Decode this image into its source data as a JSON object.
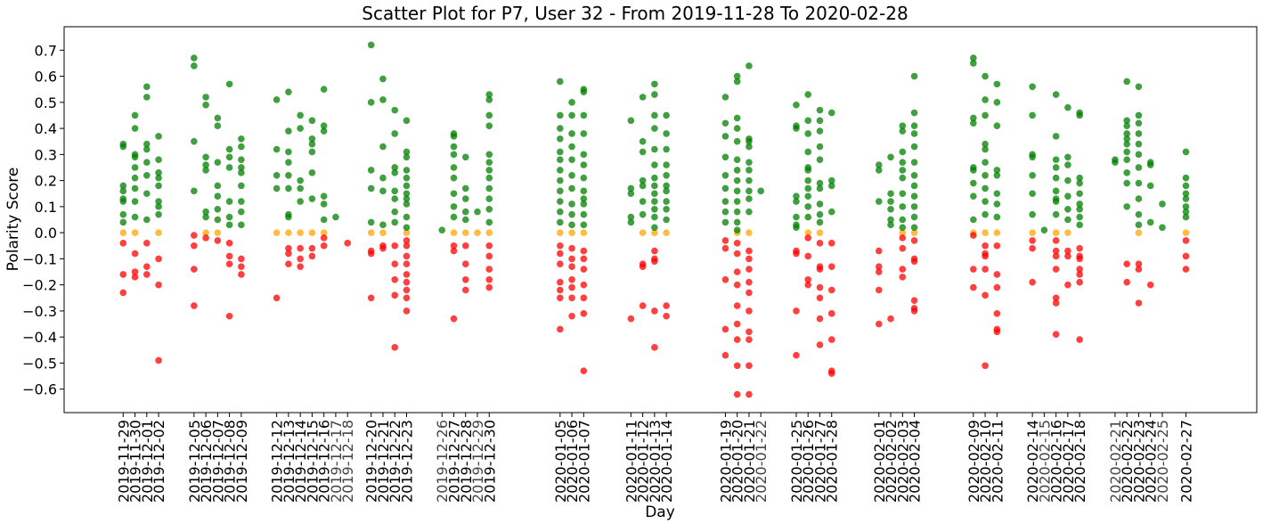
{
  "chart_data": {
    "type": "scatter",
    "title": "Scatter Plot for P7, User 32 - From 2019-11-28 To 2020-02-28",
    "xlabel": "Day",
    "ylabel": "Polarity Score",
    "ylim": [
      -0.69,
      0.79
    ],
    "yticks": [
      -0.6,
      -0.5,
      -0.4,
      -0.3,
      -0.2,
      -0.1,
      0.0,
      0.1,
      0.2,
      0.3,
      0.4,
      0.5,
      0.6,
      0.7
    ],
    "ytick_labels": [
      "−0.6",
      "−0.5",
      "−0.4",
      "−0.3",
      "−0.2",
      "−0.1",
      "0.0",
      "0.1",
      "0.2",
      "0.3",
      "0.4",
      "0.5",
      "0.6",
      "0.7"
    ],
    "xlim": [
      "2019-11-24",
      "2020-03-04"
    ],
    "grid": false,
    "colors": {
      "positive": "#008000",
      "neutral": "#ffa500",
      "negative": "#ff0000"
    },
    "days": [
      {
        "date": "2019-11-29",
        "pos": [
          0.34,
          0.33,
          0.18,
          0.16,
          0.13,
          0.12,
          0.07,
          0.04
        ],
        "neu": [
          0.0
        ],
        "neg": [
          -0.04,
          -0.16,
          -0.23
        ]
      },
      {
        "date": "2019-11-30",
        "pos": [
          0.45,
          0.4,
          0.3,
          0.29,
          0.25,
          0.21,
          0.17,
          0.12,
          0.06
        ],
        "neu": [
          0.0
        ],
        "neg": [
          -0.08,
          -0.15,
          -0.17
        ]
      },
      {
        "date": "2019-12-01",
        "pos": [
          0.56,
          0.52,
          0.34,
          0.32,
          0.27,
          0.22,
          0.15,
          0.05
        ],
        "neu": [],
        "neg": [
          -0.04,
          -0.13,
          -0.16
        ]
      },
      {
        "date": "2019-12-02",
        "pos": [
          0.37,
          0.28,
          0.23,
          0.21,
          0.18,
          0.12,
          0.1,
          0.07
        ],
        "neu": [
          0.0
        ],
        "neg": [
          -0.1,
          -0.2,
          -0.49
        ]
      },
      {
        "date": "2019-12-05",
        "pos": [
          0.67,
          0.64,
          0.35,
          0.16
        ],
        "neu": [],
        "neg": [
          -0.01,
          -0.05,
          -0.14,
          -0.28
        ]
      },
      {
        "date": "2019-12-06",
        "pos": [
          0.52,
          0.49,
          0.29,
          0.26,
          0.24,
          0.08,
          0.06
        ],
        "neu": [
          0.0
        ],
        "neg": [
          -0.02
        ]
      },
      {
        "date": "2019-12-07",
        "pos": [
          0.44,
          0.41,
          0.27,
          0.18,
          0.14,
          0.09,
          0.05
        ],
        "neu": [
          0.0
        ],
        "neg": [
          -0.03
        ]
      },
      {
        "date": "2019-12-08",
        "pos": [
          0.57,
          0.32,
          0.29,
          0.25,
          0.12,
          0.06,
          0.03
        ],
        "neu": [],
        "neg": [
          -0.04,
          -0.09,
          -0.12,
          -0.32
        ]
      },
      {
        "date": "2019-12-09",
        "pos": [
          0.36,
          0.33,
          0.28,
          0.25,
          0.23,
          0.18,
          0.12,
          0.08,
          0.03
        ],
        "neu": [],
        "neg": [
          -0.1,
          -0.13,
          -0.16
        ]
      },
      {
        "date": "2019-12-12",
        "pos": [
          0.51,
          0.32,
          0.22,
          0.17
        ],
        "neu": [
          0.0
        ],
        "neg": [
          -0.25
        ]
      },
      {
        "date": "2019-12-13",
        "pos": [
          0.54,
          0.39,
          0.31,
          0.27,
          0.22,
          0.17,
          0.07,
          0.06
        ],
        "neu": [
          0.0
        ],
        "neg": [
          -0.06,
          -0.08,
          -0.12
        ]
      },
      {
        "date": "2019-12-14",
        "pos": [
          0.45,
          0.4,
          0.2,
          0.17,
          0.12
        ],
        "neu": [
          0.0
        ],
        "neg": [
          -0.06,
          -0.1,
          -0.13
        ]
      },
      {
        "date": "2019-12-15",
        "pos": [
          0.43,
          0.36,
          0.34,
          0.31,
          0.23,
          0.13
        ],
        "neu": [
          0.0
        ],
        "neg": [
          -0.06,
          -0.09
        ]
      },
      {
        "date": "2019-12-16",
        "pos": [
          0.55,
          0.41,
          0.39,
          0.14,
          0.11,
          0.05
        ],
        "neu": [
          0.0
        ],
        "neg": [
          -0.02,
          -0.05
        ]
      },
      {
        "date": "2019-12-17",
        "pos": [
          0.06
        ],
        "neu": [],
        "neg": []
      },
      {
        "date": "2019-12-18",
        "pos": [],
        "neu": [],
        "neg": [
          -0.04
        ]
      },
      {
        "date": "2019-12-20",
        "pos": [
          0.72,
          0.5,
          0.24,
          0.17,
          0.04
        ],
        "neu": [
          0.0
        ],
        "neg": [
          -0.07,
          -0.08,
          -0.25
        ]
      },
      {
        "date": "2019-12-21",
        "pos": [
          0.59,
          0.51,
          0.33,
          0.21,
          0.16,
          0.03
        ],
        "neu": [
          0.0
        ],
        "neg": [
          -0.05,
          -0.06
        ]
      },
      {
        "date": "2019-12-22",
        "pos": [
          0.47,
          0.38,
          0.25,
          0.23,
          0.16,
          0.13,
          0.08,
          0.04
        ],
        "neu": [],
        "neg": [
          -0.05,
          -0.12,
          -0.18,
          -0.24,
          -0.44
        ]
      },
      {
        "date": "2019-12-23",
        "pos": [
          0.43,
          0.31,
          0.29,
          0.24,
          0.21,
          0.18,
          0.15,
          0.13,
          0.11,
          0.06,
          0.02
        ],
        "neu": [
          0.0
        ],
        "neg": [
          -0.03,
          -0.05,
          -0.09,
          -0.12,
          -0.16,
          -0.19,
          -0.22,
          -0.25,
          -0.3
        ]
      },
      {
        "date": "2019-12-26",
        "pos": [
          0.01
        ],
        "neu": [],
        "neg": []
      },
      {
        "date": "2019-12-27",
        "pos": [
          0.38,
          0.37,
          0.33,
          0.3,
          0.25,
          0.21,
          0.15,
          0.1,
          0.06
        ],
        "neu": [
          0.0
        ],
        "neg": [
          -0.05,
          -0.07,
          -0.33
        ]
      },
      {
        "date": "2019-12-28",
        "pos": [
          0.29,
          0.17,
          0.13,
          0.08,
          0.05
        ],
        "neu": [
          0.0
        ],
        "neg": [
          -0.05,
          -0.12,
          -0.18,
          -0.22
        ]
      },
      {
        "date": "2019-12-29",
        "pos": [
          0.08
        ],
        "neu": [
          0.0
        ],
        "neg": []
      },
      {
        "date": "2019-12-30",
        "pos": [
          0.53,
          0.51,
          0.45,
          0.41,
          0.3,
          0.27,
          0.24,
          0.21,
          0.17,
          0.13,
          0.09,
          0.04
        ],
        "neu": [
          0.0
        ],
        "neg": [
          -0.05,
          -0.09,
          -0.14,
          -0.18,
          -0.21
        ]
      },
      {
        "date": "2020-01-05",
        "pos": [
          0.58,
          0.45,
          0.4,
          0.36,
          0.31,
          0.28,
          0.24,
          0.2,
          0.16,
          0.12,
          0.08,
          0.04
        ],
        "neu": [
          0.0
        ],
        "neg": [
          -0.05,
          -0.08,
          -0.12,
          -0.19,
          -0.22,
          -0.25,
          -0.37
        ]
      },
      {
        "date": "2020-01-06",
        "pos": [
          0.5,
          0.45,
          0.38,
          0.33,
          0.28,
          0.22,
          0.17,
          0.11,
          0.07,
          0.03
        ],
        "neu": [
          0.0
        ],
        "neg": [
          -0.06,
          -0.1,
          -0.13,
          -0.18,
          -0.21,
          -0.25,
          -0.32
        ]
      },
      {
        "date": "2020-01-07",
        "pos": [
          0.55,
          0.54,
          0.45,
          0.38,
          0.3,
          0.26,
          0.21,
          0.16,
          0.13,
          0.11,
          0.07,
          0.03
        ],
        "neu": [
          0.0
        ],
        "neg": [
          -0.07,
          -0.1,
          -0.14,
          -0.2,
          -0.25,
          -0.31,
          -0.53
        ]
      },
      {
        "date": "2020-01-11",
        "pos": [
          0.43,
          0.17,
          0.15,
          0.06,
          0.04
        ],
        "neu": [],
        "neg": [
          -0.33
        ]
      },
      {
        "date": "2020-01-12",
        "pos": [
          0.52,
          0.35,
          0.31,
          0.2,
          0.18,
          0.12,
          0.07
        ],
        "neu": [
          0.0
        ],
        "neg": [
          -0.12,
          -0.13,
          -0.28
        ]
      },
      {
        "date": "2020-01-13",
        "pos": [
          0.57,
          0.53,
          0.45,
          0.4,
          0.32,
          0.26,
          0.21,
          0.18,
          0.15,
          0.12,
          0.09,
          0.06,
          0.02
        ],
        "neu": [
          0.0
        ],
        "neg": [
          -0.07,
          -0.1,
          -0.11,
          -0.3,
          -0.44
        ]
      },
      {
        "date": "2020-01-14",
        "pos": [
          0.45,
          0.38,
          0.32,
          0.26,
          0.22,
          0.18,
          0.16,
          0.12,
          0.09,
          0.05
        ],
        "neu": [
          0.0
        ],
        "neg": [
          -0.28,
          -0.32
        ]
      },
      {
        "date": "2020-01-19",
        "pos": [
          0.52,
          0.42,
          0.37,
          0.29,
          0.22,
          0.17,
          0.12,
          0.08,
          0.04
        ],
        "neu": [],
        "neg": [
          -0.03,
          -0.06,
          -0.18,
          -0.37,
          -0.47
        ]
      },
      {
        "date": "2020-01-20",
        "pos": [
          0.6,
          0.58,
          0.44,
          0.4,
          0.35,
          0.28,
          0.24,
          0.2,
          0.16,
          0.12,
          0.08,
          0.04,
          0.01
        ],
        "neu": [
          0.0
        ],
        "neg": [
          -0.04,
          -0.08,
          -0.15,
          -0.2,
          -0.28,
          -0.35,
          -0.41,
          -0.51,
          -0.62
        ]
      },
      {
        "date": "2020-01-21",
        "pos": [
          0.64,
          0.36,
          0.35,
          0.33,
          0.27,
          0.24,
          0.2,
          0.16,
          0.13,
          0.08
        ],
        "neu": [
          0.0
        ],
        "neg": [
          -0.07,
          -0.1,
          -0.14,
          -0.19,
          -0.23,
          -0.3,
          -0.38,
          -0.41,
          -0.51,
          -0.62
        ]
      },
      {
        "date": "2020-01-22",
        "pos": [
          0.16
        ],
        "neu": [],
        "neg": []
      },
      {
        "date": "2020-01-25",
        "pos": [
          0.49,
          0.41,
          0.4,
          0.14,
          0.12,
          0.06,
          0.03,
          0.02
        ],
        "neu": [],
        "neg": [
          -0.07,
          -0.08,
          -0.3,
          -0.47
        ]
      },
      {
        "date": "2020-01-26",
        "pos": [
          0.53,
          0.43,
          0.38,
          0.31,
          0.25,
          0.24,
          0.2,
          0.17,
          0.14,
          0.1,
          0.06
        ],
        "neu": [
          0.0
        ],
        "neg": [
          -0.02,
          -0.09,
          -0.18,
          -0.2
        ]
      },
      {
        "date": "2020-01-27",
        "pos": [
          0.47,
          0.43,
          0.39,
          0.33,
          0.28,
          0.19,
          0.17,
          0.11,
          0.07,
          0.04
        ],
        "neu": [
          0.0
        ],
        "neg": [
          -0.04,
          -0.13,
          -0.14,
          -0.21,
          -0.25,
          -0.33,
          -0.43
        ]
      },
      {
        "date": "2020-01-28",
        "pos": [
          0.46,
          0.2,
          0.18,
          0.08
        ],
        "neu": [],
        "neg": [
          -0.04,
          -0.13,
          -0.22,
          -0.31,
          -0.41,
          -0.53,
          -0.54
        ]
      },
      {
        "date": "2020-02-01",
        "pos": [
          0.26,
          0.24,
          0.12
        ],
        "neu": [],
        "neg": [
          -0.07,
          -0.13,
          -0.15,
          -0.22,
          -0.35
        ]
      },
      {
        "date": "2020-02-02",
        "pos": [
          0.29,
          0.15,
          0.12,
          0.09,
          0.05,
          0.03
        ],
        "neu": [],
        "neg": [
          -0.33
        ]
      },
      {
        "date": "2020-02-03",
        "pos": [
          0.41,
          0.39,
          0.31,
          0.27,
          0.24,
          0.21,
          0.15,
          0.1,
          0.05,
          0.02
        ],
        "neu": [
          0.0
        ],
        "neg": [
          -0.02,
          -0.06,
          -0.14,
          -0.17
        ]
      },
      {
        "date": "2020-02-04",
        "pos": [
          0.6,
          0.46,
          0.41,
          0.38,
          0.33,
          0.27,
          0.22,
          0.18,
          0.14,
          0.1,
          0.06,
          0.02
        ],
        "neu": [
          0.0
        ],
        "neg": [
          -0.03,
          -0.1,
          -0.11,
          -0.26,
          -0.29,
          -0.3
        ]
      },
      {
        "date": "2020-02-09",
        "pos": [
          0.67,
          0.65,
          0.44,
          0.42,
          0.25,
          0.24,
          0.19,
          0.14,
          0.05
        ],
        "neu": [
          0.0
        ],
        "neg": [
          -0.01,
          -0.14,
          -0.21
        ]
      },
      {
        "date": "2020-02-10",
        "pos": [
          0.6,
          0.51,
          0.45,
          0.34,
          0.32,
          0.27,
          0.22,
          0.17,
          0.12,
          0.07
        ],
        "neu": [
          0.0
        ],
        "neg": [
          -0.05,
          -0.08,
          -0.09,
          -0.14,
          -0.24,
          -0.51
        ]
      },
      {
        "date": "2020-02-11",
        "pos": [
          0.57,
          0.5,
          0.41,
          0.24,
          0.22,
          0.15,
          0.11,
          0.06
        ],
        "neu": [
          0.0
        ],
        "neg": [
          -0.05,
          -0.16,
          -0.21,
          -0.31,
          -0.37,
          -0.38
        ]
      },
      {
        "date": "2020-02-14",
        "pos": [
          0.56,
          0.45,
          0.3,
          0.29,
          0.22,
          0.15,
          0.07
        ],
        "neu": [
          0.0
        ],
        "neg": [
          -0.03,
          -0.06,
          -0.19
        ]
      },
      {
        "date": "2020-02-15",
        "pos": [
          0.01
        ],
        "neu": [],
        "neg": []
      },
      {
        "date": "2020-02-16",
        "pos": [
          0.53,
          0.37,
          0.28,
          0.25,
          0.21,
          0.16,
          0.13,
          0.12,
          0.07
        ],
        "neu": [
          0.0
        ],
        "neg": [
          -0.03,
          -0.07,
          -0.09,
          -0.14,
          -0.25,
          -0.27,
          -0.39
        ]
      },
      {
        "date": "2020-02-17",
        "pos": [
          0.48,
          0.29,
          0.26,
          0.2,
          0.14,
          0.09,
          0.05
        ],
        "neu": [
          0.0
        ],
        "neg": [
          -0.07,
          -0.09,
          -0.2
        ]
      },
      {
        "date": "2020-02-18",
        "pos": [
          0.46,
          0.45,
          0.21,
          0.19,
          0.15,
          0.11,
          0.09,
          0.06,
          0.03
        ],
        "neu": [],
        "neg": [
          -0.06,
          -0.09,
          -0.1,
          -0.14,
          -0.16,
          -0.19,
          -0.41
        ]
      },
      {
        "date": "2020-02-21",
        "pos": [
          0.28,
          0.27
        ],
        "neu": [],
        "neg": []
      },
      {
        "date": "2020-02-22",
        "pos": [
          0.58,
          0.43,
          0.41,
          0.38,
          0.36,
          0.34,
          0.31,
          0.28,
          0.23,
          0.19,
          0.1
        ],
        "neu": [],
        "neg": [
          -0.12,
          -0.19
        ]
      },
      {
        "date": "2020-02-23",
        "pos": [
          0.56,
          0.45,
          0.42,
          0.38,
          0.34,
          0.3,
          0.25,
          0.19,
          0.13,
          0.07,
          0.03
        ],
        "neu": [
          0.0
        ],
        "neg": [
          -0.12,
          -0.14,
          -0.27
        ]
      },
      {
        "date": "2020-02-24",
        "pos": [
          0.27,
          0.26,
          0.18,
          0.04
        ],
        "neu": [],
        "neg": [
          -0.2
        ]
      },
      {
        "date": "2020-02-25",
        "pos": [
          0.11,
          0.02
        ],
        "neu": [],
        "neg": []
      },
      {
        "date": "2020-02-27",
        "pos": [
          0.31,
          0.21,
          0.18,
          0.15,
          0.13,
          0.1,
          0.08,
          0.06
        ],
        "neu": [
          0.0
        ],
        "neg": [
          -0.03,
          -0.09,
          -0.14
        ]
      }
    ],
    "grey_tick_dates": [
      "2019-12-17",
      "2019-12-18",
      "2019-12-26",
      "2019-12-29",
      "2020-01-22",
      "2020-02-15",
      "2020-02-21",
      "2020-02-25"
    ]
  }
}
